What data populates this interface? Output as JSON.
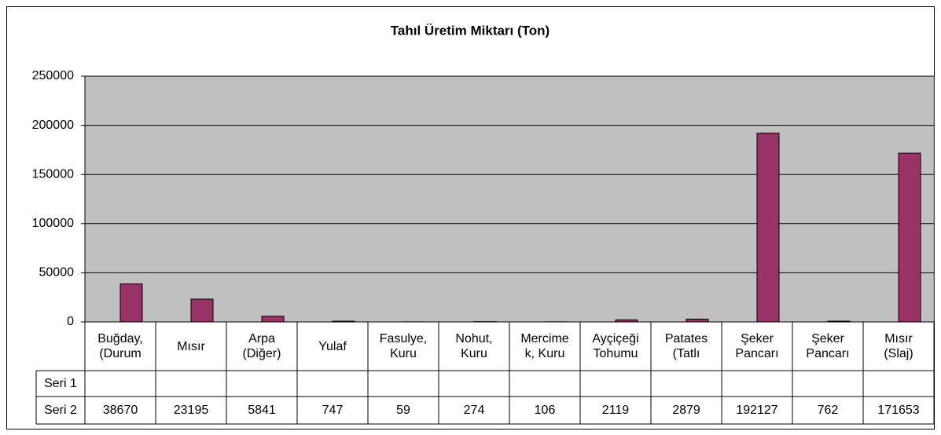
{
  "chart_data": {
    "type": "bar",
    "title": "Tahıl Üretim Miktarı (Ton)",
    "categories": [
      "Buğday,\n(Durum",
      "Mısır",
      "Arpa\n(Diğer)",
      "Yulaf",
      "Fasulye,\nKuru",
      "Nohut,\nKuru",
      "Mercime\nk, Kuru",
      "Ayçiçeği\nTohumu",
      "Patates\n(Tatlı",
      "Şeker\nPancarı",
      "Şeker\nPancarı",
      "Mısır\n(Slaj)"
    ],
    "series": [
      {
        "name": "Seri 1",
        "values": [
          null,
          null,
          null,
          null,
          null,
          null,
          null,
          null,
          null,
          null,
          null,
          null
        ]
      },
      {
        "name": "Seri 2",
        "color": "#993366",
        "values": [
          38670,
          23195,
          5841,
          747,
          59,
          274,
          106,
          2119,
          2879,
          192127,
          762,
          171653
        ]
      }
    ],
    "ylim": [
      0,
      250000
    ],
    "yticks": [
      0,
      50000,
      100000,
      150000,
      200000,
      250000
    ],
    "grid": true,
    "plot_background": "#c0c0c0"
  }
}
